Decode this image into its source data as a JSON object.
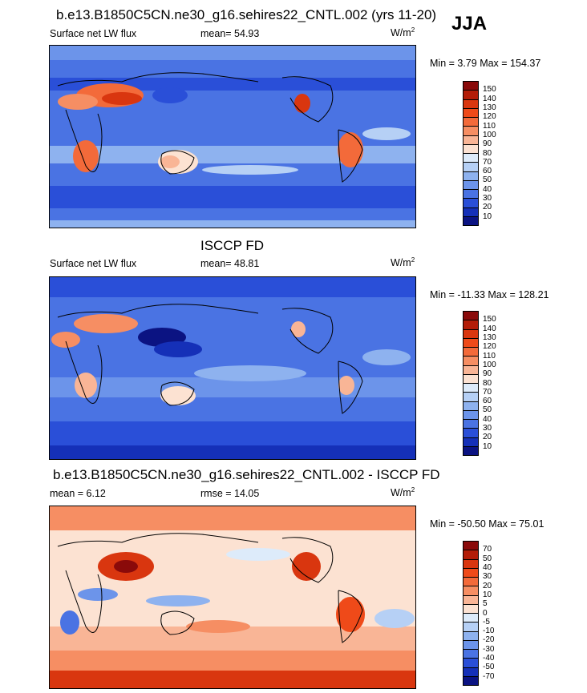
{
  "season": "JJA",
  "units_base": "W/m",
  "units_exp": "2",
  "panels": [
    {
      "id": "model",
      "title": "b.e13.B1850C5CN.ne30_g16.sehires22_CNTL.002 (yrs 11-20)",
      "left_label": "Surface net LW flux",
      "stat_label": "mean=  54.93",
      "minmax_label": "Min =   3.79 Max = 154.37",
      "palette": "abs"
    },
    {
      "id": "obs",
      "title": "ISCCP FD",
      "left_label": "Surface net LW flux",
      "stat_label": "mean=  48.81",
      "minmax_label": "Min = -11.33 Max = 128.21",
      "palette": "abs"
    },
    {
      "id": "diff",
      "title": "b.e13.B1850C5CN.ne30_g16.sehires22_CNTL.002 - ISCCP FD",
      "left_label": "mean =   6.12",
      "stat_label": "rmse =  14.05",
      "minmax_label": "Min = -50.50 Max =  75.01",
      "palette": "diff"
    }
  ],
  "colorbars": {
    "abs": {
      "levels": [
        "150",
        "140",
        "130",
        "120",
        "110",
        "100",
        "90",
        "80",
        "70",
        "60",
        "50",
        "40",
        "30",
        "20",
        "10"
      ],
      "colors": [
        "#8a0a0a",
        "#b31d08",
        "#d9360f",
        "#ef4a19",
        "#f36a3a",
        "#f68e63",
        "#f9b596",
        "#fce2d2",
        "#ddebfa",
        "#b6d0f5",
        "#8eb2ef",
        "#6c94ea",
        "#4a73e3",
        "#2a4fd8",
        "#1530b8",
        "#0b1382"
      ]
    },
    "diff": {
      "levels": [
        "70",
        "50",
        "40",
        "30",
        "20",
        "10",
        "5",
        "0",
        "-5",
        "-10",
        "-20",
        "-30",
        "-40",
        "-50",
        "-70"
      ],
      "colors": [
        "#8a0a0a",
        "#b31d08",
        "#d9360f",
        "#ef4a19",
        "#f36a3a",
        "#f68e63",
        "#f9b596",
        "#fce2d2",
        "#ddebfa",
        "#b6d0f5",
        "#8eb2ef",
        "#6c94ea",
        "#4a73e3",
        "#2a4fd8",
        "#1530b8",
        "#0b1382"
      ]
    }
  }
}
